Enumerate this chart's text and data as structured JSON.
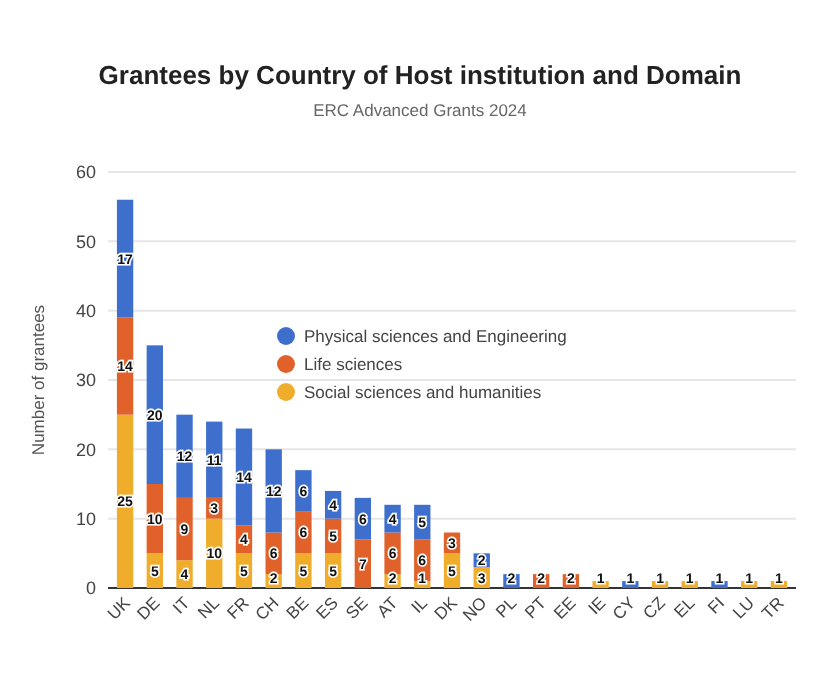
{
  "chart_data": {
    "type": "bar",
    "title": "Grantees by Country of Host institution and Domain",
    "subtitle": "ERC Advanced Grants 2024",
    "ylabel": "Number of grantees",
    "stacked": true,
    "data_labels": true,
    "grid": "y",
    "legend": "right",
    "categories": [
      "UK",
      "DE",
      "IT",
      "NL",
      "FR",
      "CH",
      "BE",
      "ES",
      "SE",
      "AT",
      "IL",
      "DK",
      "NO",
      "PL",
      "PT",
      "EE",
      "IE",
      "CY",
      "CZ",
      "EL",
      "FI",
      "LU",
      "TR"
    ],
    "ylim": [
      0,
      60
    ],
    "yticks": [
      0,
      10,
      20,
      30,
      40,
      50,
      60
    ],
    "series": [
      {
        "name": "Social sciences and humanities",
        "color": "#f0ad2c",
        "values": [
          25,
          5,
          4,
          10,
          5,
          2,
          5,
          5,
          null,
          2,
          1,
          5,
          3,
          null,
          null,
          null,
          1,
          null,
          1,
          1,
          null,
          1,
          1
        ]
      },
      {
        "name": "Life sciences",
        "color": "#e0622a",
        "values": [
          14,
          10,
          9,
          3,
          4,
          6,
          6,
          5,
          7,
          6,
          6,
          3,
          null,
          null,
          2,
          2,
          null,
          null,
          null,
          null,
          null,
          null,
          null
        ]
      },
      {
        "name": "Physical sciences and Engineering",
        "color": "#3f6fcc",
        "values": [
          17,
          20,
          12,
          11,
          14,
          12,
          6,
          4,
          6,
          4,
          5,
          null,
          2,
          2,
          null,
          null,
          null,
          1,
          null,
          null,
          1,
          null,
          null
        ]
      }
    ]
  }
}
